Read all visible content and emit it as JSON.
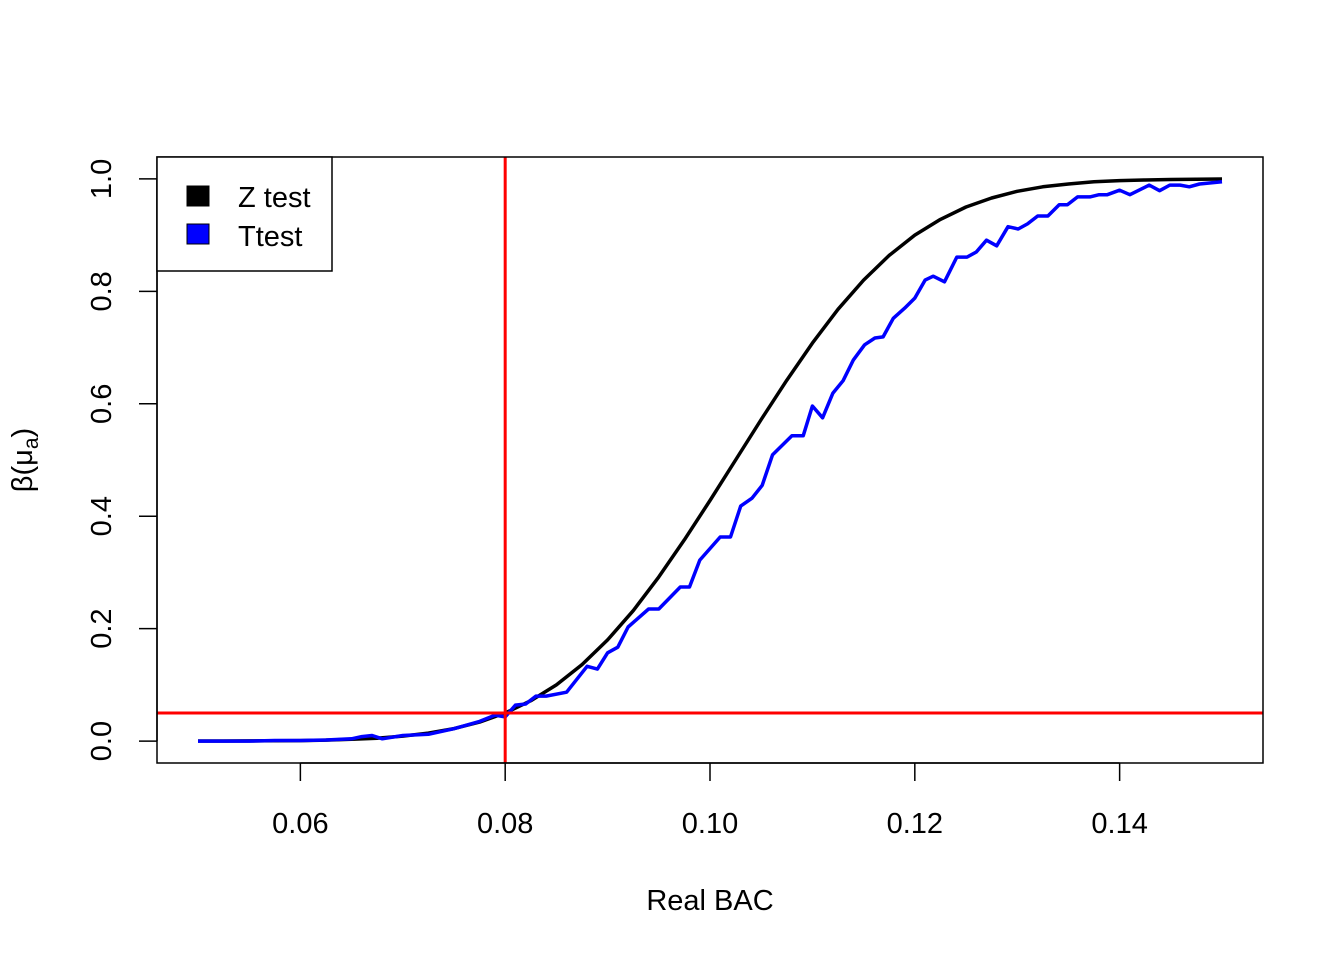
{
  "chart_data": {
    "type": "line",
    "title": "",
    "xlabel": "Real BAC",
    "ylabel": "β(μa)",
    "ylabel_main": "β(μ",
    "ylabel_sub": "a",
    "ylabel_close": ")",
    "xlim": [
      0.046,
      0.154
    ],
    "ylim": [
      -0.039,
      1.039
    ],
    "xticks": [
      0.06,
      0.08,
      0.1,
      0.12,
      0.14
    ],
    "xtick_labels": [
      "0.06",
      "0.08",
      "0.10",
      "0.12",
      "0.14"
    ],
    "yticks": [
      0.0,
      0.2,
      0.4,
      0.6,
      0.8,
      1.0
    ],
    "ytick_labels": [
      "0.0",
      "0.2",
      "0.4",
      "0.6",
      "0.8",
      "1.0"
    ],
    "grid": false,
    "legend": {
      "position": "top-left",
      "entries": [
        {
          "label": "Z test",
          "color": "#000000"
        },
        {
          "label": "Ttest",
          "color": "#0000ff"
        }
      ]
    },
    "reference_lines": [
      {
        "orientation": "vertical",
        "value": 0.08,
        "color": "#ff0000"
      },
      {
        "orientation": "horizontal",
        "value": 0.05,
        "color": "#ff0000"
      }
    ],
    "series": [
      {
        "name": "Z test",
        "color": "#000000",
        "x": [
          0.05,
          0.0525,
          0.055,
          0.0575,
          0.06,
          0.0625,
          0.065,
          0.0675,
          0.07,
          0.0725,
          0.075,
          0.0775,
          0.08,
          0.0825,
          0.085,
          0.0875,
          0.09,
          0.0925,
          0.095,
          0.0975,
          0.1,
          0.1025,
          0.105,
          0.1075,
          0.11,
          0.1125,
          0.115,
          0.1175,
          0.12,
          0.1225,
          0.125,
          0.1275,
          0.13,
          0.1325,
          0.135,
          0.1375,
          0.14,
          0.1425,
          0.145,
          0.1475,
          0.15
        ],
        "y": [
          0.0001,
          0.0001,
          0.0003,
          0.0005,
          0.0009,
          0.0017,
          0.0031,
          0.0052,
          0.0088,
          0.0142,
          0.0222,
          0.0338,
          0.05,
          0.0719,
          0.1,
          0.136,
          0.18,
          0.232,
          0.292,
          0.358,
          0.428,
          0.5,
          0.572,
          0.642,
          0.708,
          0.768,
          0.82,
          0.864,
          0.9,
          0.928,
          0.95,
          0.966,
          0.978,
          0.986,
          0.991,
          0.995,
          0.997,
          0.998,
          0.999,
          0.9995,
          0.9999
        ]
      },
      {
        "name": "Ttest",
        "color": "#0000ff",
        "x": [
          0.05,
          0.0525,
          0.055,
          0.0575,
          0.06,
          0.0625,
          0.065,
          0.066,
          0.067,
          0.068,
          0.07,
          0.0725,
          0.075,
          0.0775,
          0.079,
          0.08,
          0.081,
          0.082,
          0.083,
          0.084,
          0.086,
          0.087,
          0.088,
          0.089,
          0.09,
          0.091,
          0.092,
          0.094,
          0.095,
          0.0971,
          0.098,
          0.099,
          0.101,
          0.102,
          0.103,
          0.1041,
          0.1051,
          0.1061,
          0.108,
          0.1091,
          0.11,
          0.111,
          0.112,
          0.113,
          0.114,
          0.1151,
          0.1161,
          0.1169,
          0.1179,
          0.119,
          0.12,
          0.121,
          0.1218,
          0.1229,
          0.1241,
          0.1251,
          0.126,
          0.127,
          0.128,
          0.1291,
          0.1301,
          0.131,
          0.132,
          0.133,
          0.1341,
          0.1349,
          0.1359,
          0.1371,
          0.138,
          0.1388,
          0.14,
          0.141,
          0.1429,
          0.1439,
          0.1449,
          0.1459,
          0.1468,
          0.1478,
          0.15
        ],
        "y": [
          0,
          0,
          0,
          0.001,
          0.001,
          0.002,
          0.004,
          0.008,
          0.01,
          0.004,
          0.01,
          0.012,
          0.022,
          0.035,
          0.046,
          0.043,
          0.064,
          0.066,
          0.08,
          0.08,
          0.087,
          0.11,
          0.133,
          0.128,
          0.157,
          0.167,
          0.203,
          0.235,
          0.235,
          0.274,
          0.274,
          0.322,
          0.363,
          0.363,
          0.418,
          0.432,
          0.455,
          0.509,
          0.543,
          0.543,
          0.596,
          0.575,
          0.619,
          0.641,
          0.678,
          0.705,
          0.717,
          0.719,
          0.752,
          0.77,
          0.788,
          0.82,
          0.827,
          0.817,
          0.861,
          0.861,
          0.87,
          0.891,
          0.881,
          0.915,
          0.911,
          0.92,
          0.934,
          0.934,
          0.954,
          0.954,
          0.968,
          0.968,
          0.972,
          0.972,
          0.98,
          0.972,
          0.989,
          0.979,
          0.989,
          0.989,
          0.986,
          0.991,
          0.995
        ]
      }
    ]
  }
}
